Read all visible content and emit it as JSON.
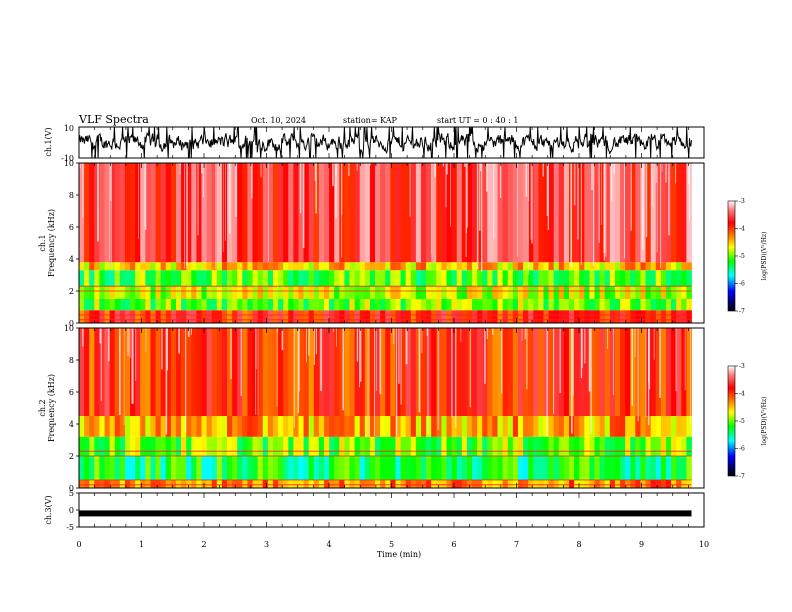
{
  "header": {
    "title": "VLF Spectra",
    "date": "Oct. 10, 2024",
    "station": "station= KAP",
    "start": "start  UT  =   0 : 40 : 1"
  },
  "colors": {
    "spectrum_low": "#0000ff",
    "spectrum_mid": "#00e000",
    "spectrum_high": "#ff2000",
    "trace": "#000000"
  },
  "chart_data": [
    {
      "type": "line",
      "name": "ch1-waveform",
      "ylabel": "ch.1(V)",
      "ylim": [
        -10,
        10
      ],
      "ytick_labels": [
        "10",
        "-10"
      ],
      "xlim": [
        0,
        10
      ]
    },
    {
      "type": "heatmap",
      "name": "ch1-spectrogram",
      "ylabel": "ch.1\nFrequency  (kHz)",
      "ylabel_line1": "ch.1",
      "ylabel_line2": "Frequency  (kHz)",
      "ylim": [
        0,
        10
      ],
      "ytick_labels": [
        "0",
        "2",
        "4",
        "6",
        "8",
        "10"
      ],
      "xlim": [
        0,
        10
      ],
      "bands_khz": [
        {
          "from": 0.0,
          "to": 0.8,
          "level": -3.9
        },
        {
          "from": 0.8,
          "to": 1.5,
          "level": -5.0
        },
        {
          "from": 1.5,
          "to": 2.3,
          "level": -4.8
        },
        {
          "from": 2.3,
          "to": 3.3,
          "level": -5.1
        },
        {
          "from": 3.3,
          "to": 3.8,
          "level": -4.5
        },
        {
          "from": 3.8,
          "to": 10.0,
          "level": -3.6
        }
      ],
      "colorbar": {
        "label": "log(PSD)(V²/Hz)",
        "ticks": [
          "-3",
          "-4",
          "-5",
          "-6",
          "-7"
        ],
        "range": [
          -7,
          -3
        ]
      }
    },
    {
      "type": "heatmap",
      "name": "ch2-spectrogram",
      "ylabel": "ch.2\nFrequency  (kHz)",
      "ylabel_line1": "ch.2",
      "ylabel_line2": "Frequency  (kHz)",
      "ylim": [
        0,
        10
      ],
      "ytick_labels": [
        "0",
        "2",
        "4",
        "6",
        "8",
        "10"
      ],
      "xlim": [
        0,
        10
      ],
      "bands_khz": [
        {
          "from": 0.0,
          "to": 0.5,
          "level": -4.3
        },
        {
          "from": 0.5,
          "to": 2.0,
          "level": -5.3
        },
        {
          "from": 2.0,
          "to": 3.2,
          "level": -5.0
        },
        {
          "from": 3.2,
          "to": 4.5,
          "level": -4.4
        },
        {
          "from": 4.5,
          "to": 10.0,
          "level": -3.9
        }
      ],
      "colorbar": {
        "label": "log(PSD)(V²/Hz)",
        "ticks": [
          "-3",
          "-4",
          "-5",
          "-6",
          "-7"
        ],
        "range": [
          -7,
          -3
        ]
      }
    },
    {
      "type": "line",
      "name": "ch3-waveform",
      "ylabel": "ch.3(V)",
      "ylim": [
        -5,
        5
      ],
      "ytick_labels": [
        "5",
        "0",
        "-5"
      ],
      "xlim": [
        0,
        10
      ],
      "xlabel": "Time  (min)",
      "xtick_labels": [
        "0",
        "1",
        "2",
        "3",
        "4",
        "5",
        "6",
        "7",
        "8",
        "9",
        "10"
      ],
      "trace_level": -1,
      "data_end_min": 9.8
    }
  ]
}
